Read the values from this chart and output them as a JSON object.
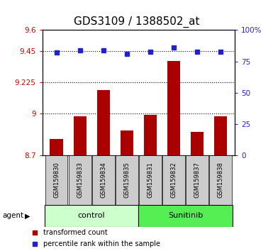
{
  "title": "GDS3109 / 1388502_at",
  "samples": [
    "GSM159830",
    "GSM159833",
    "GSM159834",
    "GSM159835",
    "GSM159831",
    "GSM159832",
    "GSM159837",
    "GSM159838"
  ],
  "bar_values": [
    8.82,
    8.98,
    9.17,
    8.88,
    8.99,
    9.38,
    8.87,
    8.98
  ],
  "percentile_values": [
    82,
    84,
    84,
    81,
    83,
    86,
    83,
    83
  ],
  "ylim_left": [
    8.7,
    9.6
  ],
  "ylim_right": [
    0,
    100
  ],
  "yticks_left": [
    8.7,
    9.0,
    9.225,
    9.45,
    9.6
  ],
  "ytick_labels_left": [
    "8.7",
    "9",
    "9.225",
    "9.45",
    "9.6"
  ],
  "yticks_right": [
    0,
    25,
    50,
    75,
    100
  ],
  "ytick_labels_right": [
    "0",
    "25",
    "50",
    "75",
    "100%"
  ],
  "hlines": [
    9.45,
    9.225,
    9.0
  ],
  "bar_color": "#aa0000",
  "dot_color": "#2222cc",
  "control_label": "control",
  "sunitinib_label": "Sunitinib",
  "agent_label": "agent",
  "legend_bar_label": "transformed count",
  "legend_dot_label": "percentile rank within the sample",
  "control_color": "#ccffcc",
  "sunitinib_color": "#55ee55",
  "label_area_color": "#cccccc",
  "background_color": "#ffffff",
  "title_fontsize": 11,
  "tick_fontsize": 7.5,
  "sample_fontsize": 6,
  "group_fontsize": 8,
  "legend_fontsize": 7,
  "n_control": 4,
  "n_sunitinib": 4
}
